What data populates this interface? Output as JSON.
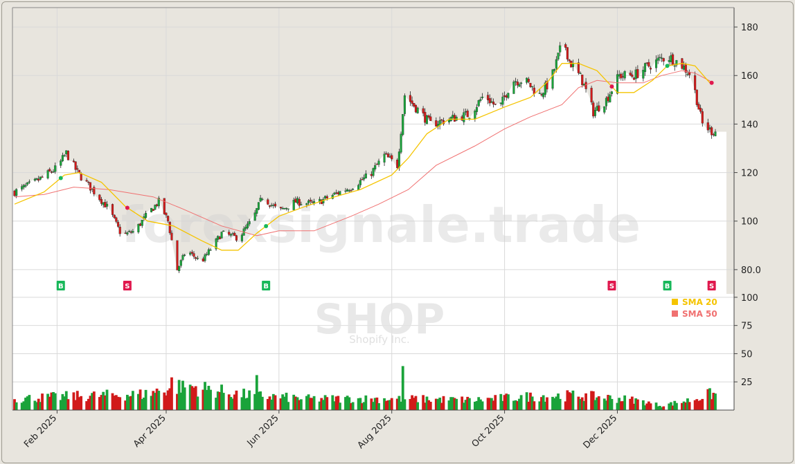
{
  "chart_data": {
    "type": "candlestick",
    "symbol": "SHOP",
    "company": "Shopify Inc.",
    "watermark": "forexsignale.trade",
    "price_axis": {
      "ylim": [
        70,
        188
      ],
      "ticks": [
        80,
        100,
        120,
        140,
        160,
        180
      ],
      "tick_labels": [
        "80.0",
        "100",
        "120",
        "140",
        "160",
        "180"
      ]
    },
    "volume_axis": {
      "ylim": [
        0,
        103
      ],
      "ticks": [
        25,
        50,
        75,
        100
      ],
      "tick_labels": [
        "25",
        "50",
        "75",
        "100"
      ]
    },
    "x_axis": {
      "start": "2025-01-09",
      "end": "2026-01-23",
      "labels": [
        {
          "date": "2025-02-01",
          "label": "Feb 2025"
        },
        {
          "date": "2025-04-01",
          "label": "Apr 2025"
        },
        {
          "date": "2025-06-01",
          "label": "Jun 2025"
        },
        {
          "date": "2025-08-01",
          "label": "Aug 2025"
        },
        {
          "date": "2025-10-01",
          "label": "Oct 2025"
        },
        {
          "date": "2025-12-01",
          "label": "Dec 2025"
        }
      ]
    },
    "price_path": [
      [
        "2025-01-09",
        112
      ],
      [
        "2025-01-20",
        116
      ],
      [
        "2025-02-01",
        122
      ],
      [
        "2025-02-06",
        128
      ],
      [
        "2025-02-12",
        120
      ],
      [
        "2025-02-20",
        113
      ],
      [
        "2025-03-01",
        105
      ],
      [
        "2025-03-08",
        94
      ],
      [
        "2025-03-15",
        96
      ],
      [
        "2025-03-22",
        103
      ],
      [
        "2025-03-28",
        108
      ],
      [
        "2025-04-02",
        100
      ],
      [
        "2025-04-07",
        80
      ],
      [
        "2025-04-12",
        88
      ],
      [
        "2025-04-20",
        83
      ],
      [
        "2025-05-01",
        95
      ],
      [
        "2025-05-10",
        93
      ],
      [
        "2025-05-18",
        101
      ],
      [
        "2025-05-23",
        110
      ],
      [
        "2025-06-01",
        104
      ],
      [
        "2025-06-10",
        108
      ],
      [
        "2025-06-20",
        107
      ],
      [
        "2025-07-01",
        111
      ],
      [
        "2025-07-10",
        114
      ],
      [
        "2025-07-20",
        119
      ],
      [
        "2025-07-28",
        127
      ],
      [
        "2025-08-04",
        123
      ],
      [
        "2025-08-08",
        152
      ],
      [
        "2025-08-15",
        146
      ],
      [
        "2025-08-22",
        140
      ],
      [
        "2025-09-01",
        142
      ],
      [
        "2025-09-12",
        144
      ],
      [
        "2025-09-20",
        152
      ],
      [
        "2025-09-28",
        146
      ],
      [
        "2025-10-05",
        158
      ],
      [
        "2025-10-12",
        158
      ],
      [
        "2025-10-20",
        152
      ],
      [
        "2025-10-26",
        158
      ],
      [
        "2025-11-02",
        175
      ],
      [
        "2025-11-05",
        166
      ],
      [
        "2025-11-12",
        158
      ],
      [
        "2025-11-18",
        145
      ],
      [
        "2025-11-25",
        150
      ],
      [
        "2025-12-02",
        160
      ],
      [
        "2025-12-10",
        160
      ],
      [
        "2025-12-20",
        165
      ],
      [
        "2025-12-28",
        168
      ],
      [
        "2026-01-04",
        165
      ],
      [
        "2026-01-10",
        160
      ],
      [
        "2026-01-16",
        140
      ],
      [
        "2026-01-21",
        137
      ]
    ],
    "sma20": [
      [
        "2025-01-09",
        107
      ],
      [
        "2025-01-25",
        112
      ],
      [
        "2025-02-05",
        119
      ],
      [
        "2025-02-13",
        120
      ],
      [
        "2025-02-25",
        116
      ],
      [
        "2025-03-10",
        106
      ],
      [
        "2025-03-22",
        100
      ],
      [
        "2025-04-05",
        98
      ],
      [
        "2025-04-20",
        92
      ],
      [
        "2025-05-01",
        88
      ],
      [
        "2025-05-10",
        88
      ],
      [
        "2025-05-20",
        95
      ],
      [
        "2025-06-01",
        102
      ],
      [
        "2025-06-15",
        106
      ],
      [
        "2025-07-01",
        110
      ],
      [
        "2025-07-15",
        113
      ],
      [
        "2025-08-01",
        119
      ],
      [
        "2025-08-10",
        126
      ],
      [
        "2025-08-20",
        136
      ],
      [
        "2025-09-01",
        142
      ],
      [
        "2025-09-15",
        142
      ],
      [
        "2025-10-01",
        147
      ],
      [
        "2025-10-15",
        151
      ],
      [
        "2025-10-25",
        158
      ],
      [
        "2025-11-01",
        165
      ],
      [
        "2025-11-10",
        165
      ],
      [
        "2025-11-20",
        162
      ],
      [
        "2025-12-01",
        153
      ],
      [
        "2025-12-10",
        153
      ],
      [
        "2025-12-20",
        158
      ],
      [
        "2025-12-28",
        164
      ],
      [
        "2026-01-05",
        165
      ],
      [
        "2026-01-12",
        164
      ],
      [
        "2026-01-20",
        157
      ]
    ],
    "sma50": [
      [
        "2025-01-09",
        110
      ],
      [
        "2025-01-25",
        111
      ],
      [
        "2025-02-10",
        114
      ],
      [
        "2025-03-01",
        113
      ],
      [
        "2025-03-25",
        110
      ],
      [
        "2025-04-10",
        105
      ],
      [
        "2025-05-01",
        98
      ],
      [
        "2025-05-20",
        94
      ],
      [
        "2025-06-01",
        96
      ],
      [
        "2025-06-20",
        96
      ],
      [
        "2025-07-10",
        102
      ],
      [
        "2025-07-25",
        107
      ],
      [
        "2025-08-10",
        113
      ],
      [
        "2025-08-25",
        123
      ],
      [
        "2025-09-15",
        131
      ],
      [
        "2025-10-01",
        138
      ],
      [
        "2025-10-15",
        143
      ],
      [
        "2025-11-01",
        148
      ],
      [
        "2025-11-10",
        155
      ],
      [
        "2025-11-20",
        158
      ],
      [
        "2025-12-01",
        157
      ],
      [
        "2025-12-15",
        157
      ],
      [
        "2025-12-25",
        160
      ],
      [
        "2026-01-05",
        162
      ],
      [
        "2026-01-12",
        161
      ],
      [
        "2026-01-22",
        157
      ]
    ],
    "volume_profile": [
      [
        "2025-01-09",
        10
      ],
      [
        "2025-02-05",
        12
      ],
      [
        "2025-03-20",
        14
      ],
      [
        "2025-04-10",
        22
      ],
      [
        "2025-05-10",
        14
      ],
      [
        "2025-06-15",
        10
      ],
      [
        "2025-08-05",
        10
      ],
      [
        "2025-09-15",
        9
      ],
      [
        "2025-10-15",
        12
      ],
      [
        "2025-11-10",
        13
      ],
      [
        "2025-12-10",
        9
      ],
      [
        "2025-12-25",
        4
      ],
      [
        "2026-01-10",
        9
      ],
      [
        "2026-01-20",
        14
      ]
    ],
    "volume_spikes": [
      [
        "2025-02-08",
        35
      ],
      [
        "2025-04-04",
        29
      ],
      [
        "2025-04-05",
        30
      ],
      [
        "2025-04-10",
        26
      ],
      [
        "2025-05-17",
        36
      ],
      [
        "2025-05-20",
        31
      ],
      [
        "2025-05-24",
        96
      ],
      [
        "2025-08-07",
        39
      ],
      [
        "2025-12-20",
        16
      ],
      [
        "2026-01-18",
        18
      ]
    ],
    "signals": [
      {
        "type": "B",
        "date": "2025-02-03"
      },
      {
        "type": "S",
        "date": "2025-03-11"
      },
      {
        "type": "B",
        "date": "2025-05-25"
      },
      {
        "type": "S",
        "date": "2025-11-28"
      },
      {
        "type": "B",
        "date": "2025-12-28"
      },
      {
        "type": "S",
        "date": "2026-01-21"
      }
    ],
    "legend": [
      {
        "name": "SMA 20",
        "color": "#f5c400"
      },
      {
        "name": "SMA 50",
        "color": "#f07070"
      }
    ],
    "colors": {
      "up": "#1aa33a",
      "down": "#d11a1a",
      "buy": "#18b85a",
      "sell": "#e0194e",
      "grid": "#d9d9d9"
    }
  }
}
